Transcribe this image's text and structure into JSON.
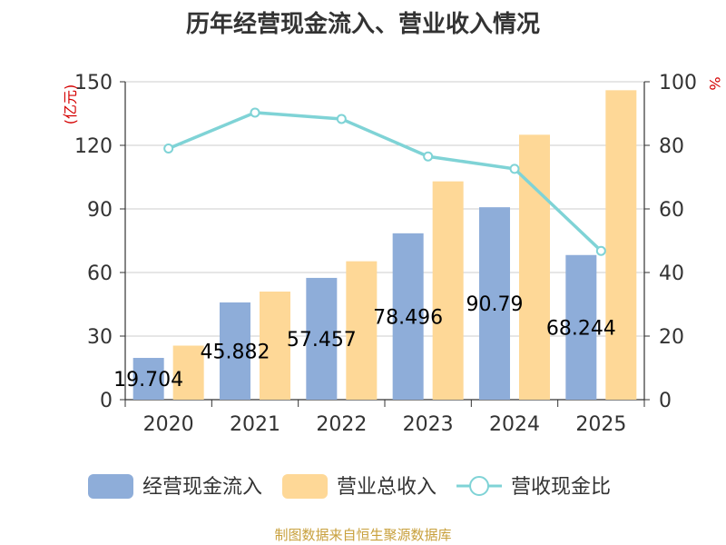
{
  "chart_data": {
    "type": "bar",
    "title": "历年经营现金流入、营业收入情况",
    "categories": [
      "2020",
      "2021",
      "2022",
      "2023",
      "2024",
      "2025"
    ],
    "series": [
      {
        "name": "经营现金流入",
        "type": "bar",
        "axis": "left",
        "color": "#8eadd9",
        "values": [
          19.704,
          45.882,
          57.457,
          78.496,
          90.79,
          68.244
        ],
        "labels": [
          "19.704",
          "45.882",
          "57.457",
          "78.496",
          "90.79",
          "68.244"
        ]
      },
      {
        "name": "营业总收入",
        "type": "bar",
        "axis": "left",
        "color": "#fed897",
        "values": [
          25.5,
          51.0,
          65.3,
          103.0,
          125.0,
          146.0
        ]
      },
      {
        "name": "营收现金比",
        "type": "line",
        "axis": "right",
        "color": "#7fd3d6",
        "values": [
          79.0,
          90.3,
          88.3,
          76.5,
          72.6,
          46.8
        ]
      }
    ],
    "y_left": {
      "unit": "(亿元)",
      "min": 0,
      "max": 150,
      "ticks": [
        0,
        30,
        60,
        90,
        120,
        150
      ]
    },
    "y_right": {
      "unit": "%",
      "min": 0,
      "max": 100,
      "ticks": [
        0,
        20,
        40,
        60,
        80,
        100
      ]
    },
    "grid": true,
    "legend_position": "bottom"
  },
  "source_note": "制图数据来自恒生聚源数据库"
}
